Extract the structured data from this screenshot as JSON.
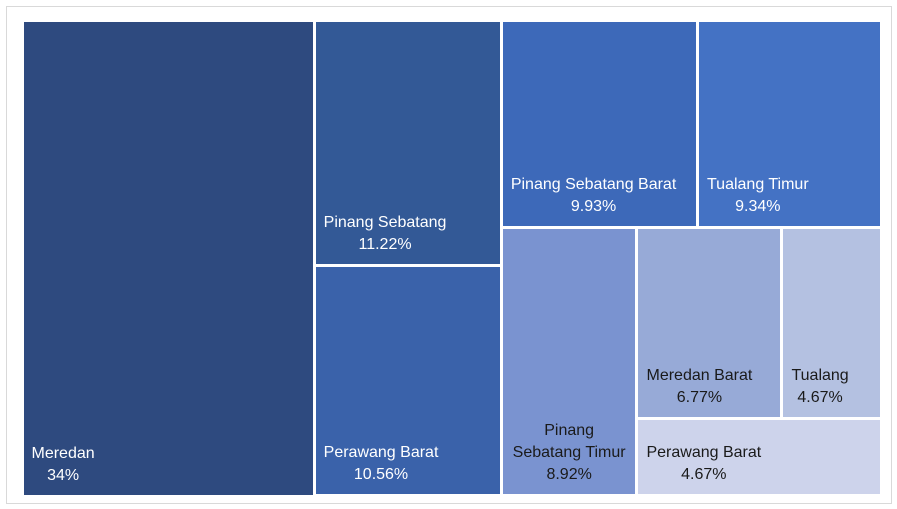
{
  "chart_data": {
    "type": "treemap",
    "categories": [
      "Meredan",
      "Pinang Sebatang",
      "Perawang Barat",
      "Pinang Sebatang Barat",
      "Tualang Timur",
      "Pinang Sebatang Timur",
      "Meredan Barat",
      "Tualang",
      "Perawang Barat"
    ],
    "values": [
      34,
      11.22,
      10.56,
      9.93,
      9.34,
      8.92,
      6.77,
      4.67,
      4.67
    ],
    "value_labels": [
      "34%",
      "11.22%",
      "10.56%",
      "9.93%",
      "9.34%",
      "8.92%",
      "6.77%",
      "4.67%",
      "4.67%"
    ],
    "colors": [
      "#2e4a7f",
      "#335996",
      "#3a62aa",
      "#3d69b9",
      "#4472c4",
      "#7a93d0",
      "#97aad7",
      "#b4c1e1",
      "#cdd3eb"
    ]
  }
}
